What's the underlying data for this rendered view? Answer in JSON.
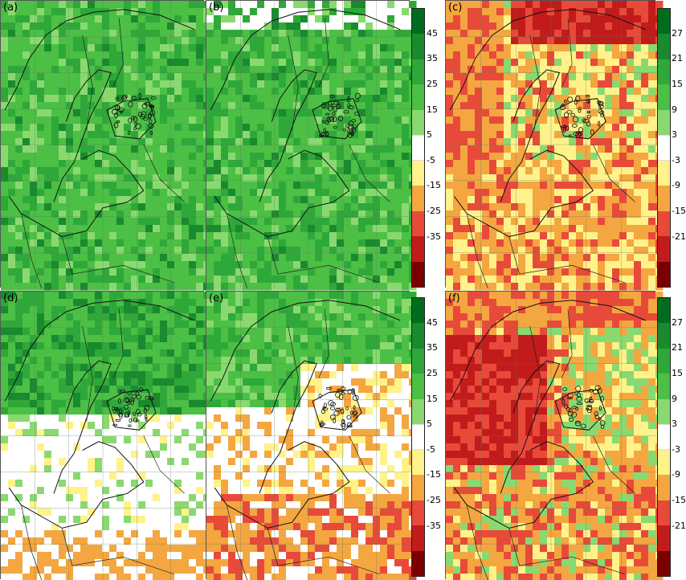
{
  "panels": [
    {
      "label": "(a)",
      "palette": "green"
    },
    {
      "label": "(b)",
      "palette": "green-white"
    },
    {
      "label": "(c)",
      "palette": "red-yellow"
    },
    {
      "label": "(d)",
      "palette": "green-white-south"
    },
    {
      "label": "(e)",
      "palette": "green-white-orange"
    },
    {
      "label": "(f)",
      "palette": "red-dominant"
    }
  ],
  "colorbar_left": {
    "ticks": [
      "45",
      "35",
      "25",
      "15",
      "5",
      "-5",
      "-15",
      "-25",
      "-35"
    ],
    "colors": [
      "#006d1e",
      "#1a8a2e",
      "#2fa83a",
      "#4cbf45",
      "#8ad970",
      "#ffffff",
      "#fff28a",
      "#f4a640",
      "#e84a3a",
      "#c21b1b",
      "#7a0000"
    ]
  },
  "colorbar_right": {
    "ticks": [
      "27",
      "21",
      "15",
      "9",
      "3",
      "-3",
      "-9",
      "-15",
      "-21"
    ],
    "colors": [
      "#006d1e",
      "#1a8a2e",
      "#2fa83a",
      "#4cbf45",
      "#8ad970",
      "#ffffff",
      "#fff28a",
      "#f4a640",
      "#e84a3a",
      "#c21b1b",
      "#7a0000"
    ]
  }
}
